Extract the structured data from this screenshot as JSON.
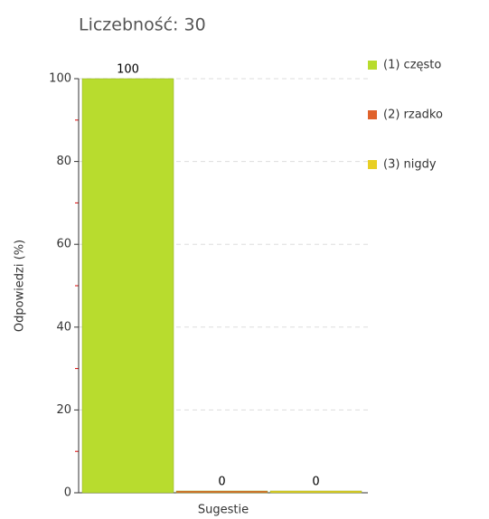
{
  "chart_data": {
    "type": "bar",
    "title": "Liczebność: 30",
    "y_label": "Odpowiedzi (%)",
    "categories": [
      "Sugestie"
    ],
    "series": [
      {
        "name": "(1) często",
        "color": "#b8dc2e",
        "values": [
          100
        ]
      },
      {
        "name": "(2) rzadko",
        "color": "#e0622c",
        "values": [
          0
        ]
      },
      {
        "name": "(3) nigdy",
        "color": "#e8cf24",
        "values": [
          0
        ]
      }
    ],
    "ylim": [
      0,
      100
    ],
    "yticks": [
      0,
      20,
      40,
      60,
      80,
      100
    ],
    "yminorticks": [
      10,
      30,
      50,
      70,
      90
    ],
    "grid": true,
    "legend": "right"
  }
}
